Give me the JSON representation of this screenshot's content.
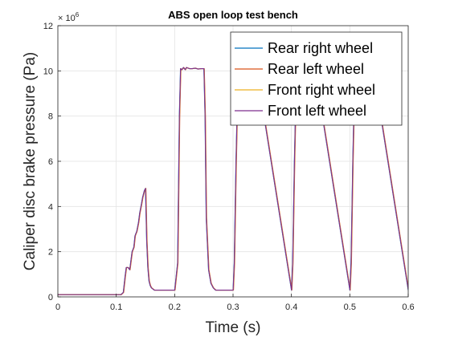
{
  "chart_data": {
    "type": "line",
    "title": "ABS open loop test bench",
    "xlabel": "Time (s)",
    "ylabel": "Caliper disc brake pressure (Pa)",
    "xlim": [
      0,
      0.6
    ],
    "ylim": [
      0,
      12000000
    ],
    "x_ticks": [
      "0",
      "0.1",
      "0.2",
      "0.3",
      "0.4",
      "0.5",
      "0.6"
    ],
    "y_ticks": [
      "0",
      "2",
      "4",
      "6",
      "8",
      "10",
      "12"
    ],
    "y_exponent": {
      "base": "× 10",
      "power": "6"
    },
    "grid": true,
    "legend_position": "top-right",
    "series": [
      {
        "name": "Rear right wheel",
        "color": "#0072BD"
      },
      {
        "name": "Rear left wheel",
        "color": "#D95319"
      },
      {
        "name": "Front right wheel",
        "color": "#EDB120"
      },
      {
        "name": "Front left wheel",
        "color": "#7E2F8E"
      }
    ],
    "x": [
      0,
      0.108,
      0.112,
      0.115,
      0.117,
      0.12,
      0.123,
      0.125,
      0.127,
      0.13,
      0.132,
      0.135,
      0.138,
      0.14,
      0.143,
      0.145,
      0.148,
      0.15,
      0.152,
      0.154,
      0.156,
      0.158,
      0.16,
      0.165,
      0.17,
      0.2,
      0.205,
      0.208,
      0.21,
      0.212,
      0.215,
      0.218,
      0.22,
      0.225,
      0.23,
      0.235,
      0.24,
      0.245,
      0.25,
      0.252,
      0.254,
      0.258,
      0.262,
      0.266,
      0.27,
      0.3,
      0.302,
      0.305,
      0.308,
      0.31,
      0.313,
      0.317,
      0.32,
      0.325,
      0.33,
      0.336,
      0.34,
      0.4,
      0.402,
      0.405,
      0.408,
      0.41,
      0.413,
      0.417,
      0.42,
      0.425,
      0.43,
      0.436,
      0.44,
      0.5,
      0.502,
      0.505,
      0.508,
      0.51,
      0.513,
      0.517,
      0.52,
      0.525,
      0.53,
      0.536,
      0.54,
      0.6
    ],
    "y": [
      100000,
      100000,
      200000,
      900000,
      1300000,
      1300000,
      1200000,
      1600000,
      2000000,
      2200000,
      2700000,
      2900000,
      3300000,
      3700000,
      4100000,
      4400000,
      4700000,
      4800000,
      2500000,
      1300000,
      700000,
      500000,
      400000,
      300000,
      300000,
      300000,
      1500000,
      8000000,
      10100000,
      10050000,
      10150000,
      10050000,
      10150000,
      10100000,
      10100000,
      10120000,
      10080000,
      10100000,
      10100000,
      8000000,
      3500000,
      1200000,
      600000,
      400000,
      300000,
      300000,
      1500000,
      6000000,
      9500000,
      10100000,
      10100000,
      10100000,
      10100000,
      10100000,
      10100000,
      10100000,
      10100000,
      300000,
      1500000,
      6000000,
      9500000,
      10100000,
      10100000,
      10100000,
      10100000,
      10100000,
      10100000,
      10100000,
      10100000,
      300000,
      1500000,
      6000000,
      9500000,
      10100000,
      10100000,
      10100000,
      10100000,
      10100000,
      10100000,
      10100000,
      10100000,
      300000
    ]
  }
}
